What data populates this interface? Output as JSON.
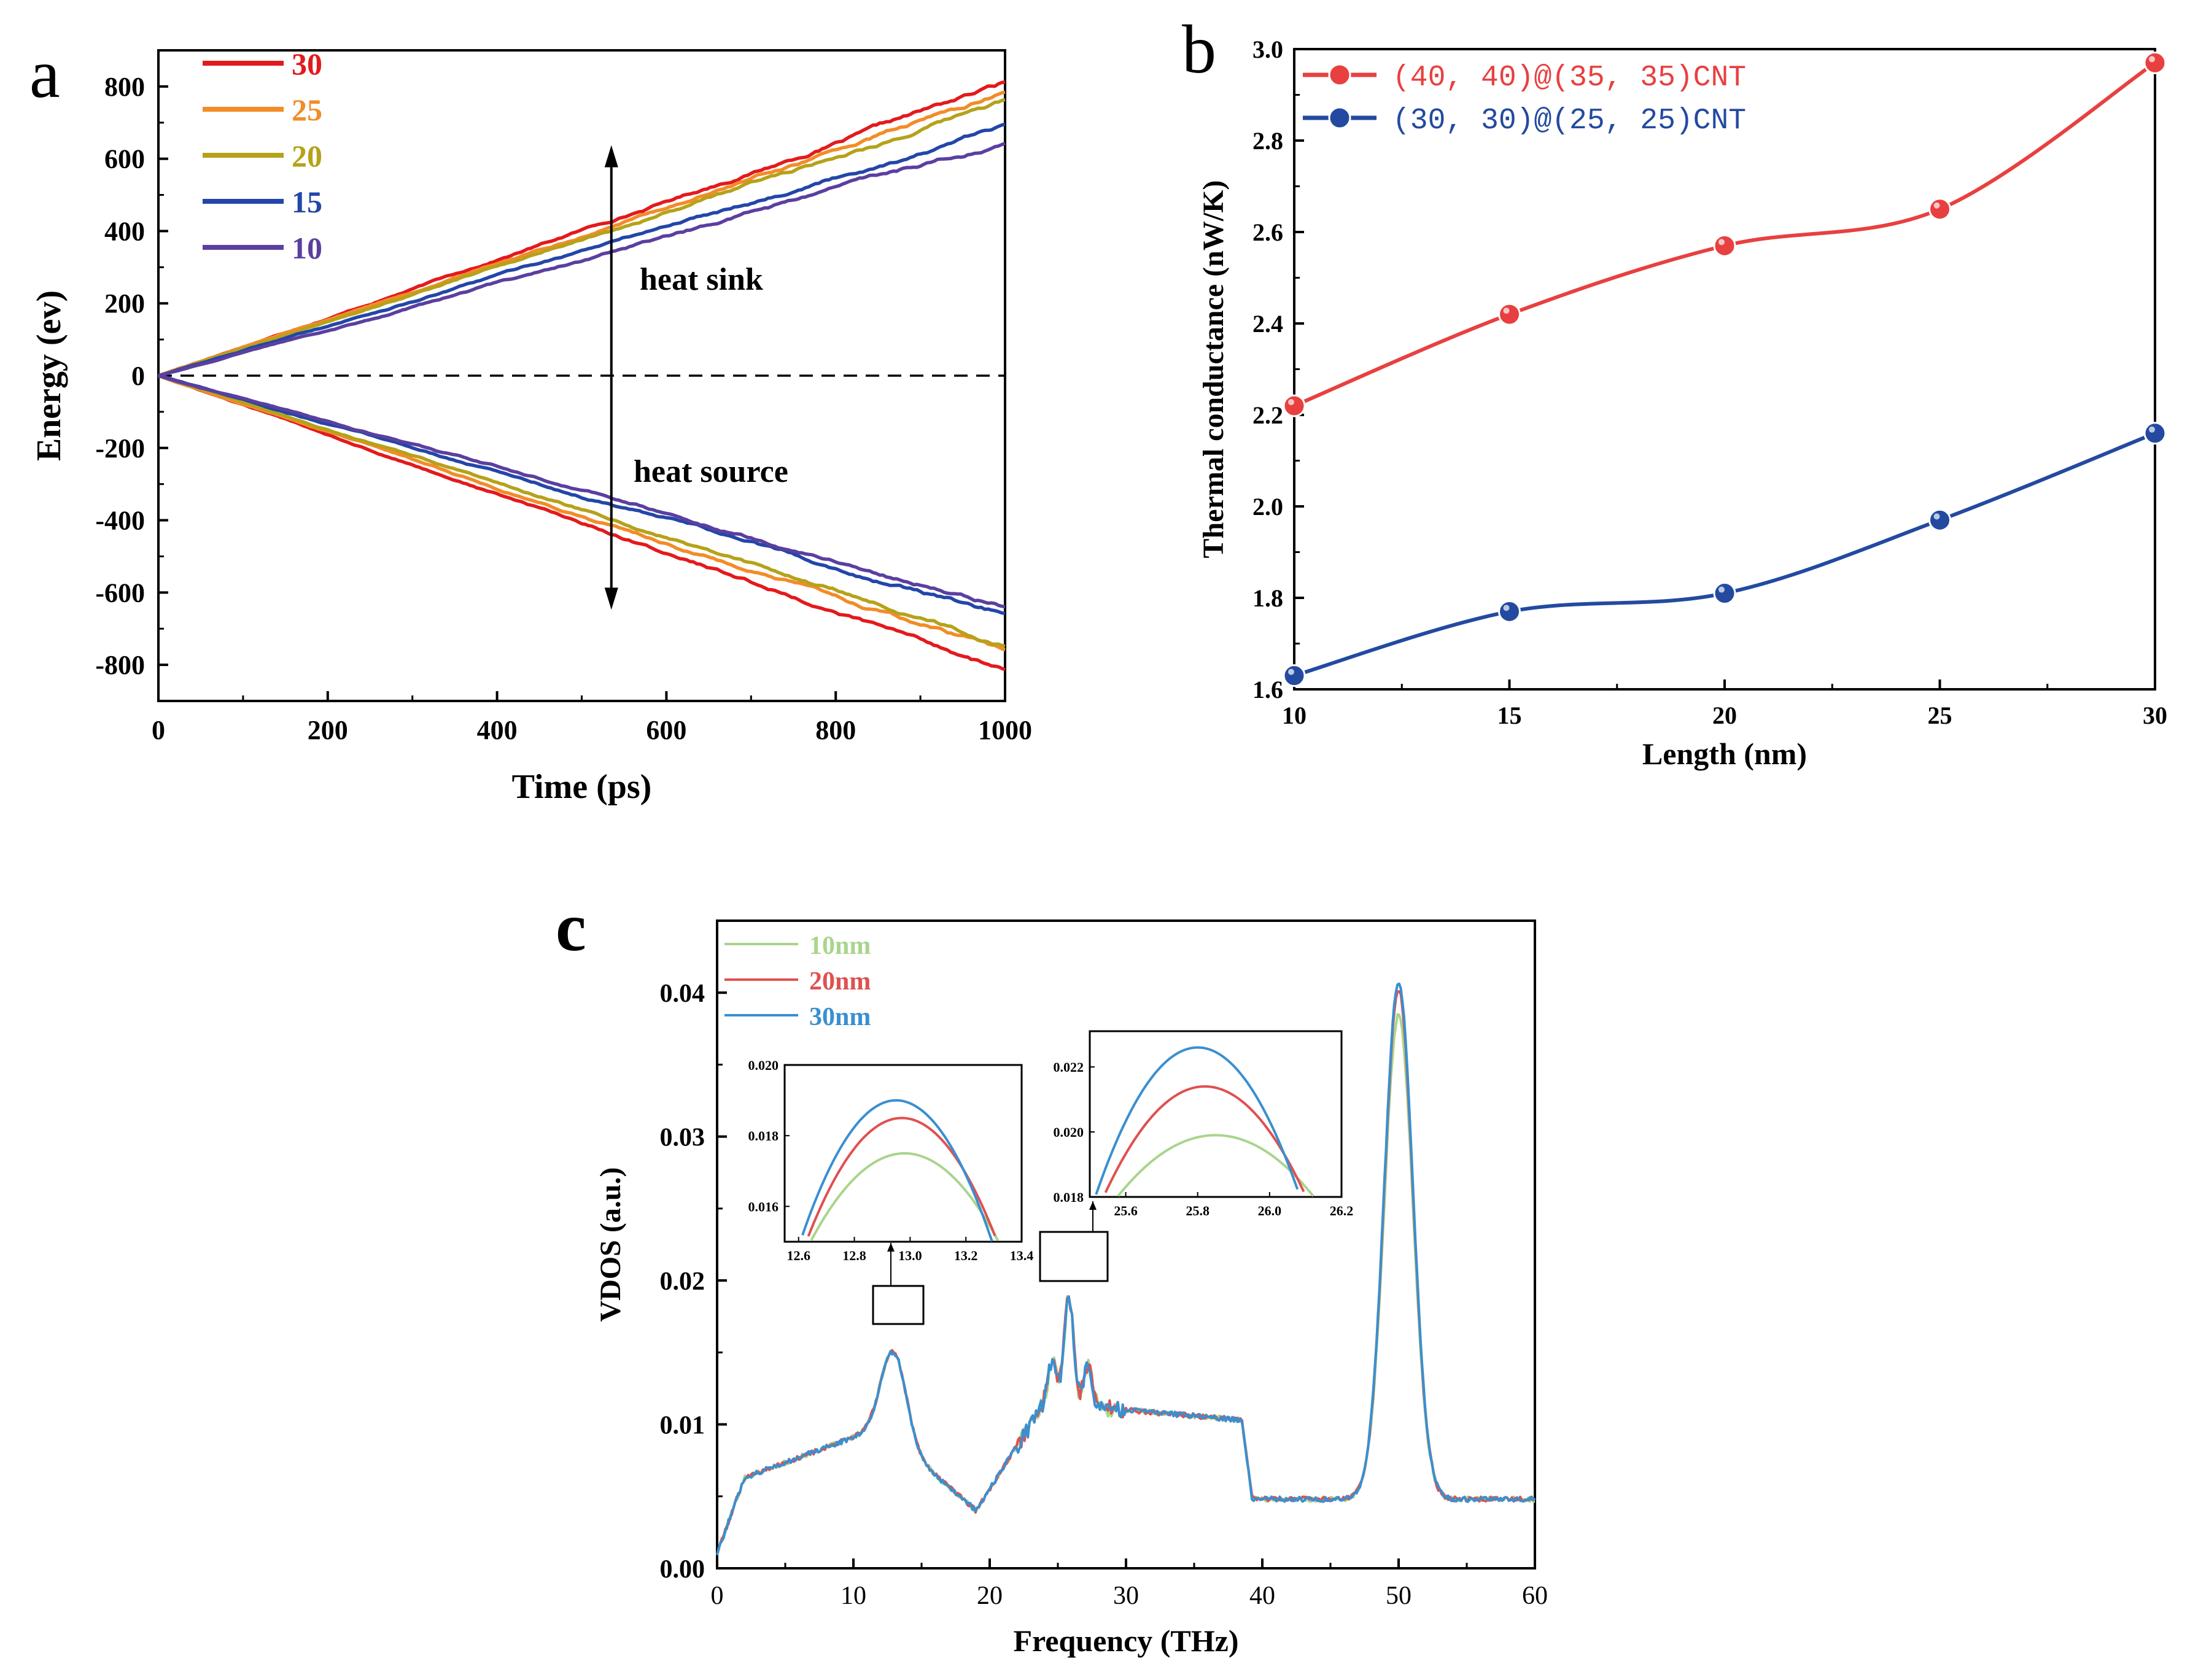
{
  "panels": {
    "a": "a",
    "b": "b",
    "c": "c"
  },
  "chart_data": [
    {
      "id": "a",
      "type": "line",
      "xlabel": "Time (ps)",
      "ylabel": "Energy (ev)",
      "xlim": [
        0,
        1000
      ],
      "ylim": [
        -900,
        900
      ],
      "xticks": [
        0,
        200,
        400,
        600,
        800,
        1000
      ],
      "yticks": [
        800,
        600,
        400,
        200,
        0,
        -200,
        -400,
        -600,
        -800
      ],
      "zero_line": "dashed",
      "annotations": [
        "heat sink",
        "heat source"
      ],
      "legend_position": "top-left",
      "series": [
        {
          "name": "30",
          "color": "#e31a1c",
          "sink_end": 805,
          "source_end": -815
        },
        {
          "name": "25",
          "color": "#f28c28",
          "sink_end": 780,
          "source_end": -770
        },
        {
          "name": "20",
          "color": "#b5a21a",
          "sink_end": 760,
          "source_end": -745
        },
        {
          "name": "15",
          "color": "#2346a8",
          "sink_end": 690,
          "source_end": -665
        },
        {
          "name": "10",
          "color": "#5b3fa0",
          "sink_end": 645,
          "source_end": -635
        }
      ]
    },
    {
      "id": "b",
      "type": "line",
      "xlabel": "Length (nm)",
      "ylabel": "Thermal conductance (nW/K)",
      "xlim": [
        10,
        30
      ],
      "ylim": [
        1.6,
        3.0
      ],
      "xticks": [
        10,
        15,
        20,
        25,
        30
      ],
      "yticks": [
        1.6,
        1.8,
        2.0,
        2.2,
        2.4,
        2.6,
        2.8,
        3.0
      ],
      "legend_position": "top-left",
      "x": [
        10,
        15,
        20,
        25,
        30
      ],
      "series": [
        {
          "name": "(40, 40)@(35, 35)CNT",
          "color": "#e84040",
          "values": [
            2.22,
            2.42,
            2.57,
            2.65,
            2.97
          ]
        },
        {
          "name": "(30, 30)@(25, 25)CNT",
          "color": "#234aa0",
          "values": [
            1.63,
            1.77,
            1.81,
            1.97,
            2.16
          ]
        }
      ]
    },
    {
      "id": "c",
      "type": "line",
      "xlabel": "Frequency (THz)",
      "ylabel": "VDOS (a.u.)",
      "xlim": [
        0,
        60
      ],
      "ylim": [
        0,
        0.045
      ],
      "xticks": [
        0,
        10,
        20,
        30,
        40,
        50,
        60
      ],
      "yticks": [
        0.0,
        0.01,
        0.02,
        0.03,
        0.04
      ],
      "ytick_labels": [
        "0.00",
        "0.01",
        "0.02",
        "0.03",
        "0.04"
      ],
      "legend_position": "top-left",
      "series": [
        {
          "name": "10nm",
          "color": "#a8d58c",
          "peak_50THz": 0.0385
        },
        {
          "name": "20nm",
          "color": "#e05050",
          "peak_50THz": 0.0402
        },
        {
          "name": "30nm",
          "color": "#3a8fd0",
          "peak_50THz": 0.0408
        }
      ],
      "insets": [
        {
          "xlim": [
            12.55,
            13.4
          ],
          "ylim": [
            0.015,
            0.02
          ],
          "xticks": [
            12.6,
            12.8,
            13.0,
            13.2,
            13.4
          ],
          "xtick_labels": [
            "12.6",
            "12.8",
            "13.0",
            "13.2",
            "13.4"
          ],
          "yticks": [
            0.016,
            0.018,
            0.02
          ],
          "ytick_labels": [
            "0.016",
            "0.018",
            "0.020"
          ],
          "peaks": [
            {
              "name": "10nm",
              "center": 12.98,
              "max": 0.0175
            },
            {
              "name": "20nm",
              "center": 12.97,
              "max": 0.0185
            },
            {
              "name": "30nm",
              "center": 12.95,
              "max": 0.019
            }
          ]
        },
        {
          "xlim": [
            25.5,
            26.2
          ],
          "ylim": [
            0.018,
            0.0231
          ],
          "xticks": [
            25.6,
            25.8,
            26.0,
            26.2
          ],
          "xtick_labels": [
            "25.6",
            "25.8",
            "26.0",
            "26.2"
          ],
          "yticks": [
            0.018,
            0.02,
            0.022
          ],
          "ytick_labels": [
            "0.018",
            "0.020",
            "0.022"
          ],
          "peaks": [
            {
              "name": "10nm",
              "center": 25.85,
              "max": 0.0199
            },
            {
              "name": "20nm",
              "center": 25.82,
              "max": 0.0214
            },
            {
              "name": "30nm",
              "center": 25.8,
              "max": 0.0226
            }
          ]
        }
      ]
    }
  ]
}
